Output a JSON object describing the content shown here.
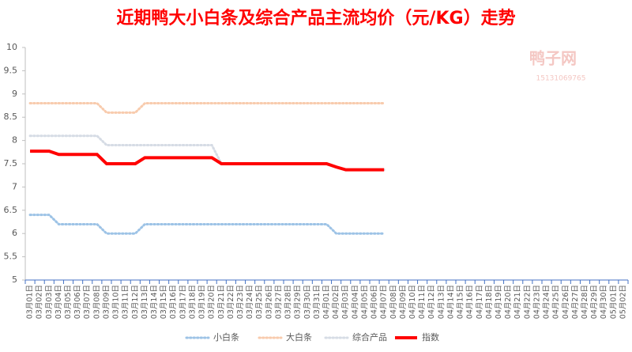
{
  "chart_data": {
    "type": "line",
    "title": "近期鸭大小白条及综合产品主流均价（元/KG）走势",
    "watermark": [
      "鸭子网",
      "15131069765"
    ],
    "categories": [
      "03月01日",
      "03月02日",
      "03月03日",
      "03月04日",
      "03月05日",
      "03月06日",
      "03月07日",
      "03月08日",
      "03月09日",
      "03月10日",
      "03月11日",
      "03月12日",
      "03月13日",
      "03月14日",
      "03月15日",
      "03月16日",
      "03月17日",
      "03月18日",
      "03月19日",
      "03月20日",
      "03月21日",
      "03月22日",
      "03月23日",
      "03月24日",
      "03月25日",
      "03月26日",
      "03月27日",
      "03月28日",
      "03月29日",
      "03月30日",
      "03月31日",
      "04月01日",
      "04月02日",
      "04月03日",
      "04月04日",
      "04月05日",
      "04月06日",
      "04月07日",
      "04月08日",
      "04月09日",
      "04月10日",
      "04月11日",
      "04月12日",
      "04月13日",
      "04月14日",
      "04月15日",
      "04月16日",
      "04月17日",
      "04月18日",
      "04月19日",
      "04月20日",
      "04月21日",
      "04月22日",
      "04月23日",
      "04月24日",
      "04月25日",
      "04月26日",
      "04月27日",
      "04月28日",
      "04月29日",
      "04月30日",
      "05月01日",
      "05月02日"
    ],
    "series": [
      {
        "name": "小白条",
        "color": "#9dc3e6",
        "style": "dotted",
        "values": [
          6.4,
          6.4,
          6.4,
          6.2,
          6.2,
          6.2,
          6.2,
          6.2,
          6.0,
          6.0,
          6.0,
          6.0,
          6.2,
          6.2,
          6.2,
          6.2,
          6.2,
          6.2,
          6.2,
          6.2,
          6.2,
          6.2,
          6.2,
          6.2,
          6.2,
          6.2,
          6.2,
          6.2,
          6.2,
          6.2,
          6.2,
          6.2,
          6.0,
          6.0,
          6.0,
          6.0,
          6.0,
          6.0,
          null,
          null,
          null,
          null,
          null,
          null,
          null,
          null,
          null,
          null,
          null,
          null,
          null,
          null,
          null,
          null,
          null,
          null,
          null,
          null,
          null,
          null,
          null,
          null,
          null
        ]
      },
      {
        "name": "大白条",
        "color": "#f8cbad",
        "style": "dotted",
        "values": [
          8.8,
          8.8,
          8.8,
          8.8,
          8.8,
          8.8,
          8.8,
          8.8,
          8.6,
          8.6,
          8.6,
          8.6,
          8.8,
          8.8,
          8.8,
          8.8,
          8.8,
          8.8,
          8.8,
          8.8,
          8.8,
          8.8,
          8.8,
          8.8,
          8.8,
          8.8,
          8.8,
          8.8,
          8.8,
          8.8,
          8.8,
          8.8,
          8.8,
          8.8,
          8.8,
          8.8,
          8.8,
          8.8,
          null,
          null,
          null,
          null,
          null,
          null,
          null,
          null,
          null,
          null,
          null,
          null,
          null,
          null,
          null,
          null,
          null,
          null,
          null,
          null,
          null,
          null,
          null,
          null,
          null
        ]
      },
      {
        "name": "综合产品",
        "color": "#d6dce5",
        "style": "dotted",
        "values": [
          8.1,
          8.1,
          8.1,
          8.1,
          8.1,
          8.1,
          8.1,
          8.1,
          7.9,
          7.9,
          7.9,
          7.9,
          7.9,
          7.9,
          7.9,
          7.9,
          7.9,
          7.9,
          7.9,
          7.9,
          7.5,
          7.5,
          7.5,
          7.5,
          7.5,
          7.5,
          7.5,
          7.5,
          7.5,
          7.5,
          7.5,
          7.5,
          7.43,
          7.37,
          7.37,
          7.37,
          7.37,
          7.37,
          null,
          null,
          null,
          null,
          null,
          null,
          null,
          null,
          null,
          null,
          null,
          null,
          null,
          null,
          null,
          null,
          null,
          null,
          null,
          null,
          null,
          null,
          null,
          null,
          null
        ]
      },
      {
        "name": "指数",
        "color": "#ff0000",
        "style": "solid",
        "values": [
          7.77,
          7.77,
          7.77,
          7.7,
          7.7,
          7.7,
          7.7,
          7.7,
          7.5,
          7.5,
          7.5,
          7.5,
          7.63,
          7.63,
          7.63,
          7.63,
          7.63,
          7.63,
          7.63,
          7.63,
          7.5,
          7.5,
          7.5,
          7.5,
          7.5,
          7.5,
          7.5,
          7.5,
          7.5,
          7.5,
          7.5,
          7.5,
          7.43,
          7.37,
          7.37,
          7.37,
          7.37,
          7.37,
          null,
          null,
          null,
          null,
          null,
          null,
          null,
          null,
          null,
          null,
          null,
          null,
          null,
          null,
          null,
          null,
          null,
          null,
          null,
          null,
          null,
          null,
          null,
          null,
          null
        ]
      }
    ],
    "ylim": [
      5,
      10
    ],
    "yticks": [
      5,
      5.5,
      6,
      6.5,
      7,
      7.5,
      8,
      8.5,
      9,
      9.5,
      10
    ],
    "grid": false,
    "legend": "bottom"
  }
}
